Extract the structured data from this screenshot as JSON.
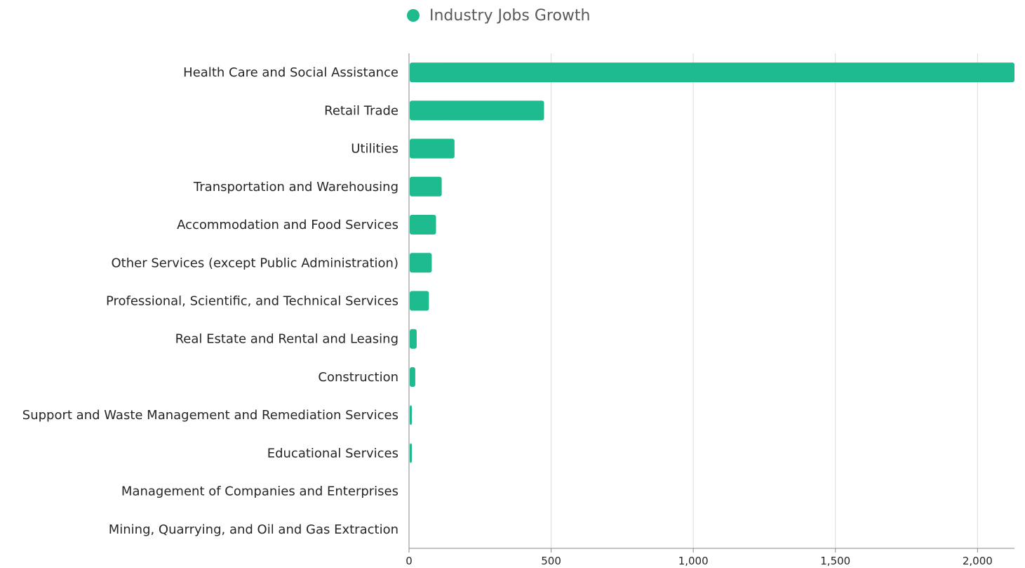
{
  "colors": {
    "bar": "#1dbb8d",
    "grid": "#dcdcdc",
    "axis": "#8a8a8a"
  },
  "legend": {
    "label": "Industry Jobs Growth",
    "icon": "circle-marker-icon"
  },
  "chart_data": {
    "type": "bar",
    "orientation": "horizontal",
    "title": "",
    "xlabel": "",
    "ylabel": "",
    "legend_position": "top-center",
    "grid": "vertical",
    "xlim": [
      0,
      2130
    ],
    "xticks": [
      0,
      500,
      1000,
      1500,
      2000
    ],
    "xtick_labels": [
      "0",
      "500",
      "1,000",
      "1,500",
      "2,000"
    ],
    "categories": [
      "Health Care and Social Assistance",
      "Retail Trade",
      "Utilities",
      "Transportation and Warehousing",
      "Accommodation and Food Services",
      "Other Services (except Public Administration)",
      "Professional, Scientific, and Technical Services",
      "Real Estate and Rental and Leasing",
      "Construction",
      "Support and Waste Management and Remediation Services",
      "Educational Services",
      "Management of Companies and Enterprises",
      "Mining, Quarrying, and Oil and Gas Extraction"
    ],
    "series": [
      {
        "name": "Industry Jobs Growth",
        "values": [
          2130,
          475,
          160,
          115,
          95,
          80,
          70,
          27,
          22,
          10,
          10,
          0,
          0
        ]
      }
    ]
  }
}
